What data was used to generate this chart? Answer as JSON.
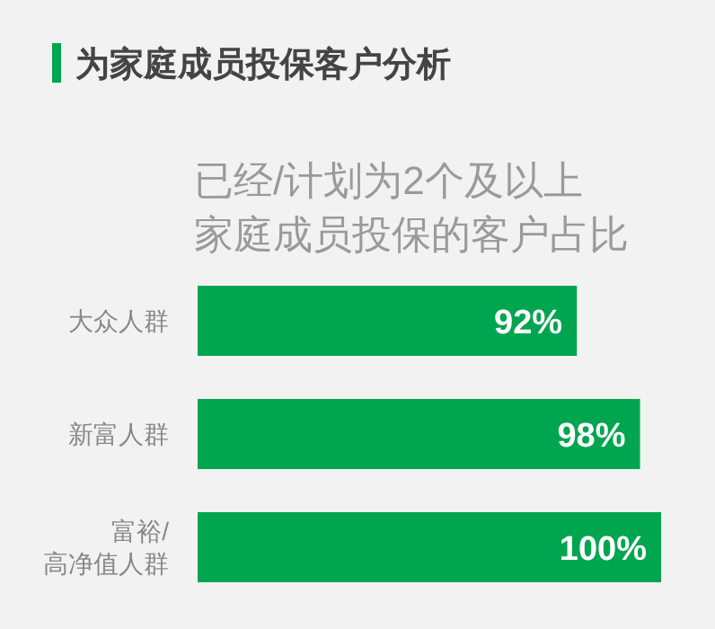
{
  "chart_data": {
    "type": "bar",
    "orientation": "horizontal",
    "title": "为家庭成员投保客户分析",
    "subtitle": [
      "已经/计划为2个及以上",
      "家庭成员投保的客户占比"
    ],
    "categories": [
      "大众人群",
      "新富人群",
      "富裕/\n高净值人群"
    ],
    "values": [
      92,
      98,
      100
    ],
    "value_labels": [
      "92%",
      "98%",
      "100%"
    ],
    "color": "#00a54f",
    "xlim": [
      56,
      100
    ],
    "tick_labels": "y"
  }
}
